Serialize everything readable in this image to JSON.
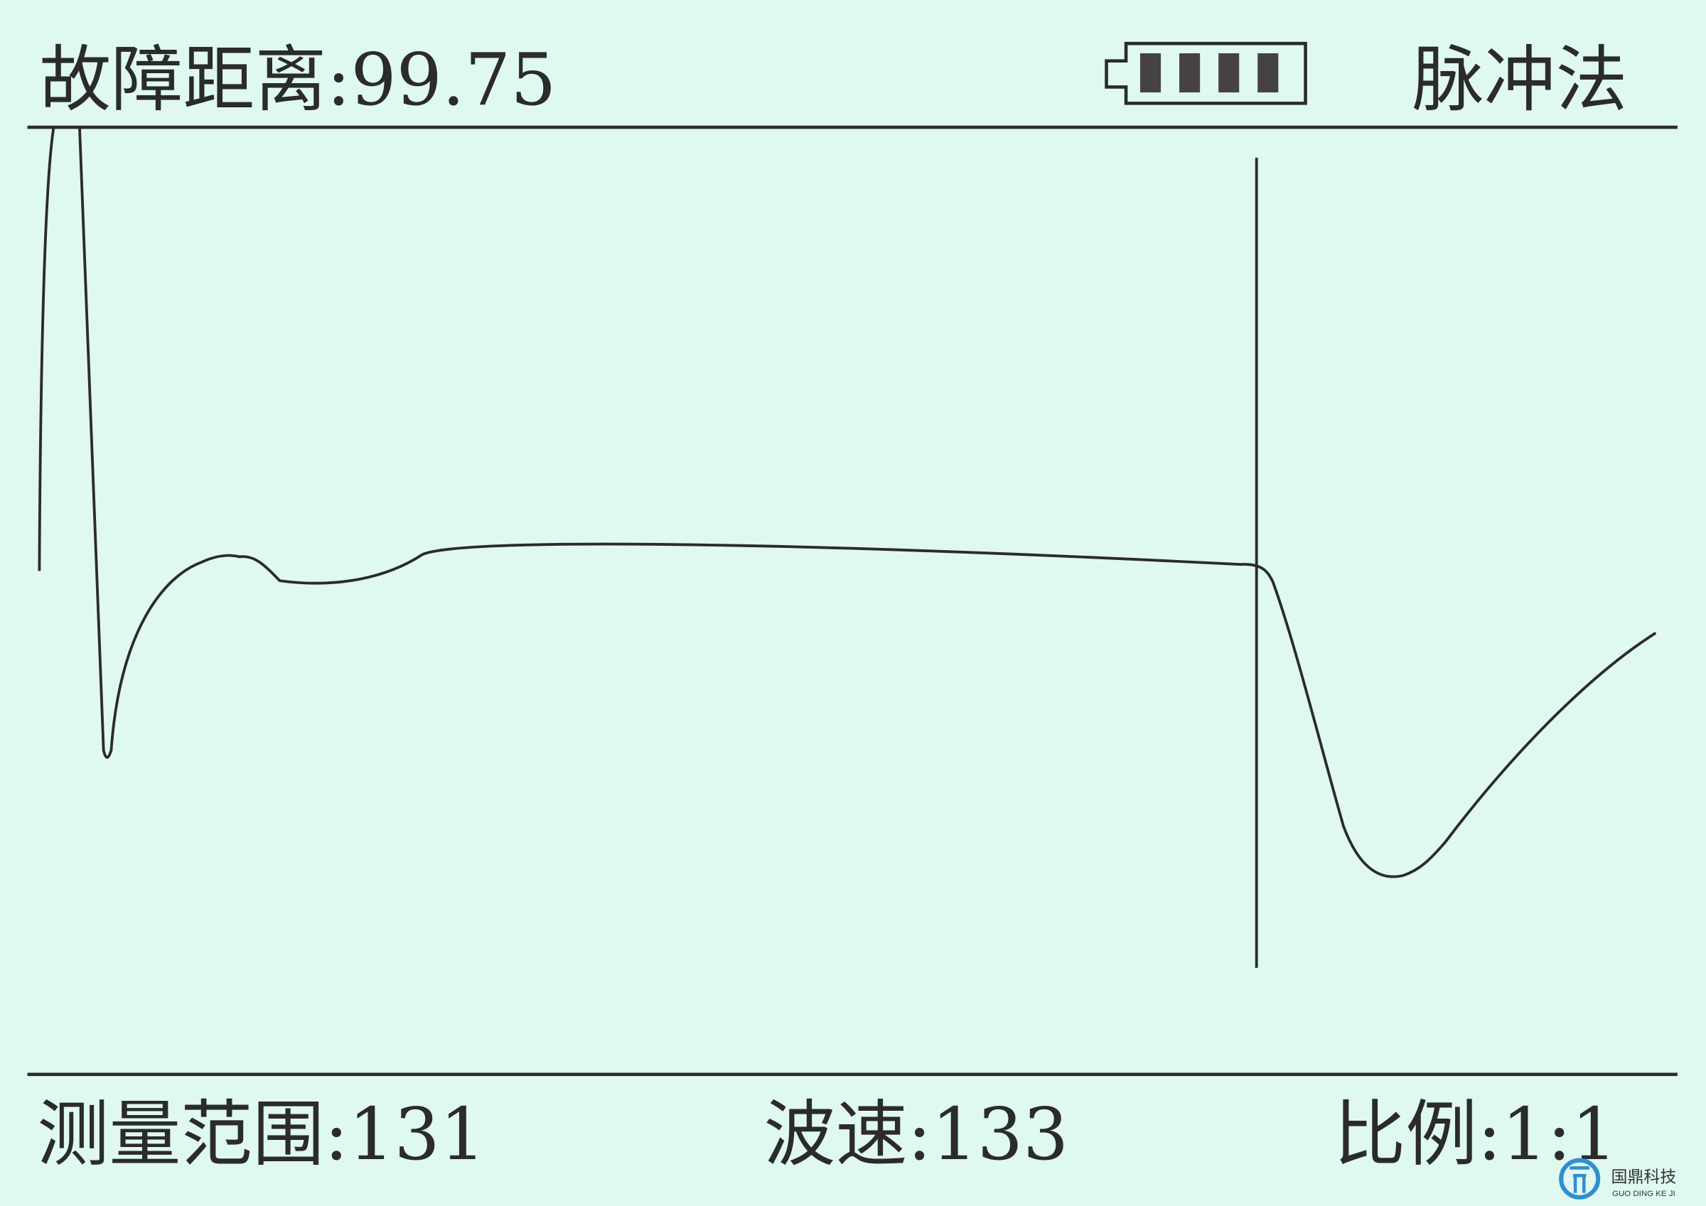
{
  "header": {
    "fault_distance_label": "故障距离:99.75",
    "battery_level_bars": 4,
    "battery_level_max": 4,
    "mode": "脉冲法"
  },
  "footer": {
    "range_label": "测量范围:131",
    "wave_speed_label": "波速:133",
    "ratio_label": "比例:1:1"
  },
  "logo": {
    "name_cn": "国鼎科技",
    "name_en": "GUO DING KE JI"
  },
  "colors": {
    "background": "#dff8f0",
    "foreground": "#2b2b2b",
    "logo_blue": "#2f8fcf"
  }
}
